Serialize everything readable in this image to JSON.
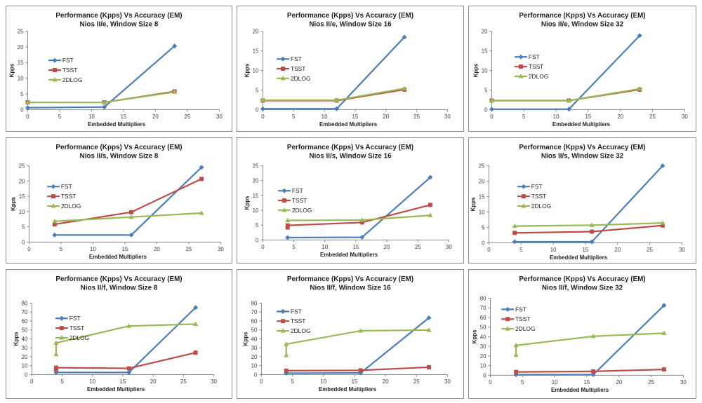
{
  "colors": {
    "FST": "#4a7ebb",
    "TSST": "#be4b48",
    "2DLOG": "#98b954"
  },
  "chart_data": [
    {
      "type": "line",
      "title": "Performance (Kpps) Vs Accuracy (EM)",
      "subtitle": "Nios II/e, Window Size 8",
      "xlabel": "Embedded Multipliers",
      "ylabel": "Kpps",
      "xlim": [
        0,
        30
      ],
      "ylim": [
        0,
        25
      ],
      "xticks": [
        0,
        5,
        10,
        15,
        20,
        25,
        30
      ],
      "yticks": [
        0,
        5,
        10,
        15,
        20,
        25
      ],
      "series": [
        {
          "name": "FST",
          "x": [
            0,
            12,
            23
          ],
          "y": [
            0.6,
            0.8,
            20.3
          ]
        },
        {
          "name": "TSST",
          "x": [
            0,
            12,
            23
          ],
          "y": [
            2.3,
            2.3,
            5.8
          ]
        },
        {
          "name": "2DLOG",
          "x": [
            0,
            12,
            23
          ],
          "y": [
            2.3,
            2.3,
            5.6
          ]
        }
      ]
    },
    {
      "type": "line",
      "title": "Performance (Kpps) Vs Accuracy (EM)",
      "subtitle": "Nios II/e, Window Size 16",
      "xlabel": "Embedded Multipliers",
      "ylabel": "Kpps",
      "xlim": [
        0,
        30
      ],
      "ylim": [
        0,
        20
      ],
      "xticks": [
        0,
        5,
        10,
        15,
        20,
        25,
        30
      ],
      "yticks": [
        0,
        5,
        10,
        15,
        20
      ],
      "series": [
        {
          "name": "FST",
          "x": [
            0,
            12,
            23
          ],
          "y": [
            0.2,
            0.2,
            18.5
          ]
        },
        {
          "name": "TSST",
          "x": [
            0,
            12,
            23
          ],
          "y": [
            2.3,
            2.3,
            5.1
          ]
        },
        {
          "name": "2DLOG",
          "x": [
            0,
            12,
            23
          ],
          "y": [
            2.4,
            2.4,
            5.4
          ]
        }
      ]
    },
    {
      "type": "line",
      "title": "Performance (Kpps) Vs Accuracy (EM)",
      "subtitle": "Nios II/e, Window Size 32",
      "xlabel": "Embedded Multipliers",
      "ylabel": "Kpps",
      "xlim": [
        0,
        30
      ],
      "ylim": [
        0,
        20
      ],
      "xticks": [
        0,
        5,
        10,
        15,
        20,
        25,
        30
      ],
      "yticks": [
        0,
        5,
        10,
        15,
        20
      ],
      "series": [
        {
          "name": "FST",
          "x": [
            0,
            12,
            23
          ],
          "y": [
            0.1,
            0.1,
            18.9
          ]
        },
        {
          "name": "TSST",
          "x": [
            0,
            12,
            23
          ],
          "y": [
            2.3,
            2.3,
            5.1
          ]
        },
        {
          "name": "2DLOG",
          "x": [
            0,
            12,
            23
          ],
          "y": [
            2.3,
            2.3,
            5.3
          ]
        }
      ]
    },
    {
      "type": "line",
      "title": "Performance (Kpps) Vs Accuracy (EM)",
      "subtitle": "Nios II/s, Window Size 8",
      "xlabel": "Embedded Multipliers",
      "ylabel": "Kpps",
      "xlim": [
        0,
        30
      ],
      "ylim": [
        0,
        25
      ],
      "xticks": [
        0,
        5,
        10,
        15,
        20,
        25,
        30
      ],
      "yticks": [
        0,
        5,
        10,
        15,
        20,
        25
      ],
      "series": [
        {
          "name": "FST",
          "x": [
            4,
            16,
            27
          ],
          "y": [
            2.3,
            2.3,
            24.5
          ]
        },
        {
          "name": "TSST",
          "x": [
            4,
            16,
            27
          ],
          "y": [
            5.8,
            9.8,
            20.7
          ]
        },
        {
          "name": "2DLOG",
          "x": [
            4,
            16,
            27
          ],
          "y": [
            6.8,
            8.2,
            9.5
          ]
        }
      ]
    },
    {
      "type": "line",
      "title": "Performance (Kpps) Vs Accuracy (EM)",
      "subtitle": "Nios II/s, Window Size 16",
      "xlabel": "Embedded Multipliers",
      "ylabel": "Kpps",
      "xlim": [
        0,
        30
      ],
      "ylim": [
        0,
        25
      ],
      "xticks": [
        0,
        5,
        10,
        15,
        20,
        25,
        30
      ],
      "yticks": [
        0,
        5,
        10,
        15,
        20,
        25
      ],
      "series": [
        {
          "name": "FST",
          "x": [
            4,
            16,
            27
          ],
          "y": [
            0.8,
            0.9,
            21.1
          ]
        },
        {
          "name": "TSST",
          "x": [
            4,
            4,
            16,
            27
          ],
          "y": [
            4.2,
            4.9,
            5.9,
            11.8
          ]
        },
        {
          "name": "2DLOG",
          "x": [
            4,
            16,
            27
          ],
          "y": [
            6.6,
            6.7,
            8.3
          ]
        }
      ]
    },
    {
      "type": "line",
      "title": "Performance (Kpps) Vs Accuracy (EM)",
      "subtitle": "Nios II/s, Window Size 32",
      "xlabel": "Embedded Multipliers",
      "ylabel": "Kpps",
      "xlim": [
        0,
        30
      ],
      "ylim": [
        0,
        25
      ],
      "xticks": [
        0,
        5,
        10,
        15,
        20,
        25,
        30
      ],
      "yticks": [
        0,
        5,
        10,
        15,
        20,
        25
      ],
      "series": [
        {
          "name": "FST",
          "x": [
            4,
            16,
            27
          ],
          "y": [
            0.3,
            0.3,
            25.0
          ]
        },
        {
          "name": "TSST",
          "x": [
            4,
            16,
            27
          ],
          "y": [
            3.2,
            3.6,
            5.6
          ]
        },
        {
          "name": "2DLOG",
          "x": [
            4,
            16,
            27
          ],
          "y": [
            5.4,
            5.7,
            6.4
          ]
        }
      ]
    },
    {
      "type": "line",
      "title": "Performance (Kpps) Vs Accuracy (EM)",
      "subtitle": "Nios II/f, Window Size 8",
      "xlabel": "Embedded Multipliers",
      "ylabel": "Kpps",
      "xlim": [
        0,
        30
      ],
      "ylim": [
        0,
        80
      ],
      "xticks": [
        0,
        5,
        10,
        15,
        20,
        25,
        30
      ],
      "yticks": [
        0,
        10,
        20,
        30,
        40,
        50,
        60,
        70,
        80
      ],
      "series": [
        {
          "name": "FST",
          "x": [
            4,
            16,
            27
          ],
          "y": [
            2.3,
            2.3,
            75.0
          ]
        },
        {
          "name": "TSST",
          "x": [
            4,
            4,
            16,
            27
          ],
          "y": [
            5.6,
            7.7,
            6.9,
            24.5
          ]
        },
        {
          "name": "2DLOG",
          "x": [
            4,
            4,
            16,
            27
          ],
          "y": [
            22.5,
            35.4,
            54.3,
            56.5
          ]
        }
      ]
    },
    {
      "type": "line",
      "title": "Performance (Kpps) Vs Accuracy (EM)",
      "subtitle": "Nios II/f, Window Size 16",
      "xlabel": "Embedded Multipliers",
      "ylabel": "Kpps",
      "xlim": [
        0,
        30
      ],
      "ylim": [
        0,
        80
      ],
      "xticks": [
        0,
        5,
        10,
        15,
        20,
        25,
        30
      ],
      "yticks": [
        0,
        10,
        20,
        30,
        40,
        50,
        60,
        70,
        80
      ],
      "series": [
        {
          "name": "FST",
          "x": [
            4,
            16,
            27
          ],
          "y": [
            1.5,
            1.8,
            63.5
          ]
        },
        {
          "name": "TSST",
          "x": [
            4,
            16,
            27
          ],
          "y": [
            4.3,
            4.7,
            8.2
          ]
        },
        {
          "name": "2DLOG",
          "x": [
            4,
            4,
            16,
            27
          ],
          "y": [
            21.5,
            34.0,
            49.0,
            49.8
          ]
        }
      ]
    },
    {
      "type": "line",
      "title": "Performance (Kpps) Vs Accuracy (EM)",
      "subtitle": "Nios II/f, Window Size 32",
      "xlabel": "Embedded Multipliers",
      "ylabel": "Kpps",
      "xlim": [
        0,
        30
      ],
      "ylim": [
        0,
        80
      ],
      "xticks": [
        0,
        5,
        10,
        15,
        20,
        25,
        30
      ],
      "yticks": [
        0,
        10,
        20,
        30,
        40,
        50,
        60,
        70,
        80
      ],
      "series": [
        {
          "name": "FST",
          "x": [
            4,
            16,
            27
          ],
          "y": [
            0.5,
            0.6,
            72.6
          ]
        },
        {
          "name": "TSST",
          "x": [
            4,
            16,
            27
          ],
          "y": [
            3.4,
            4.0,
            6.0
          ]
        },
        {
          "name": "2DLOG",
          "x": [
            4,
            4,
            16,
            27
          ],
          "y": [
            21.0,
            31.0,
            40.5,
            43.7
          ]
        }
      ]
    }
  ]
}
